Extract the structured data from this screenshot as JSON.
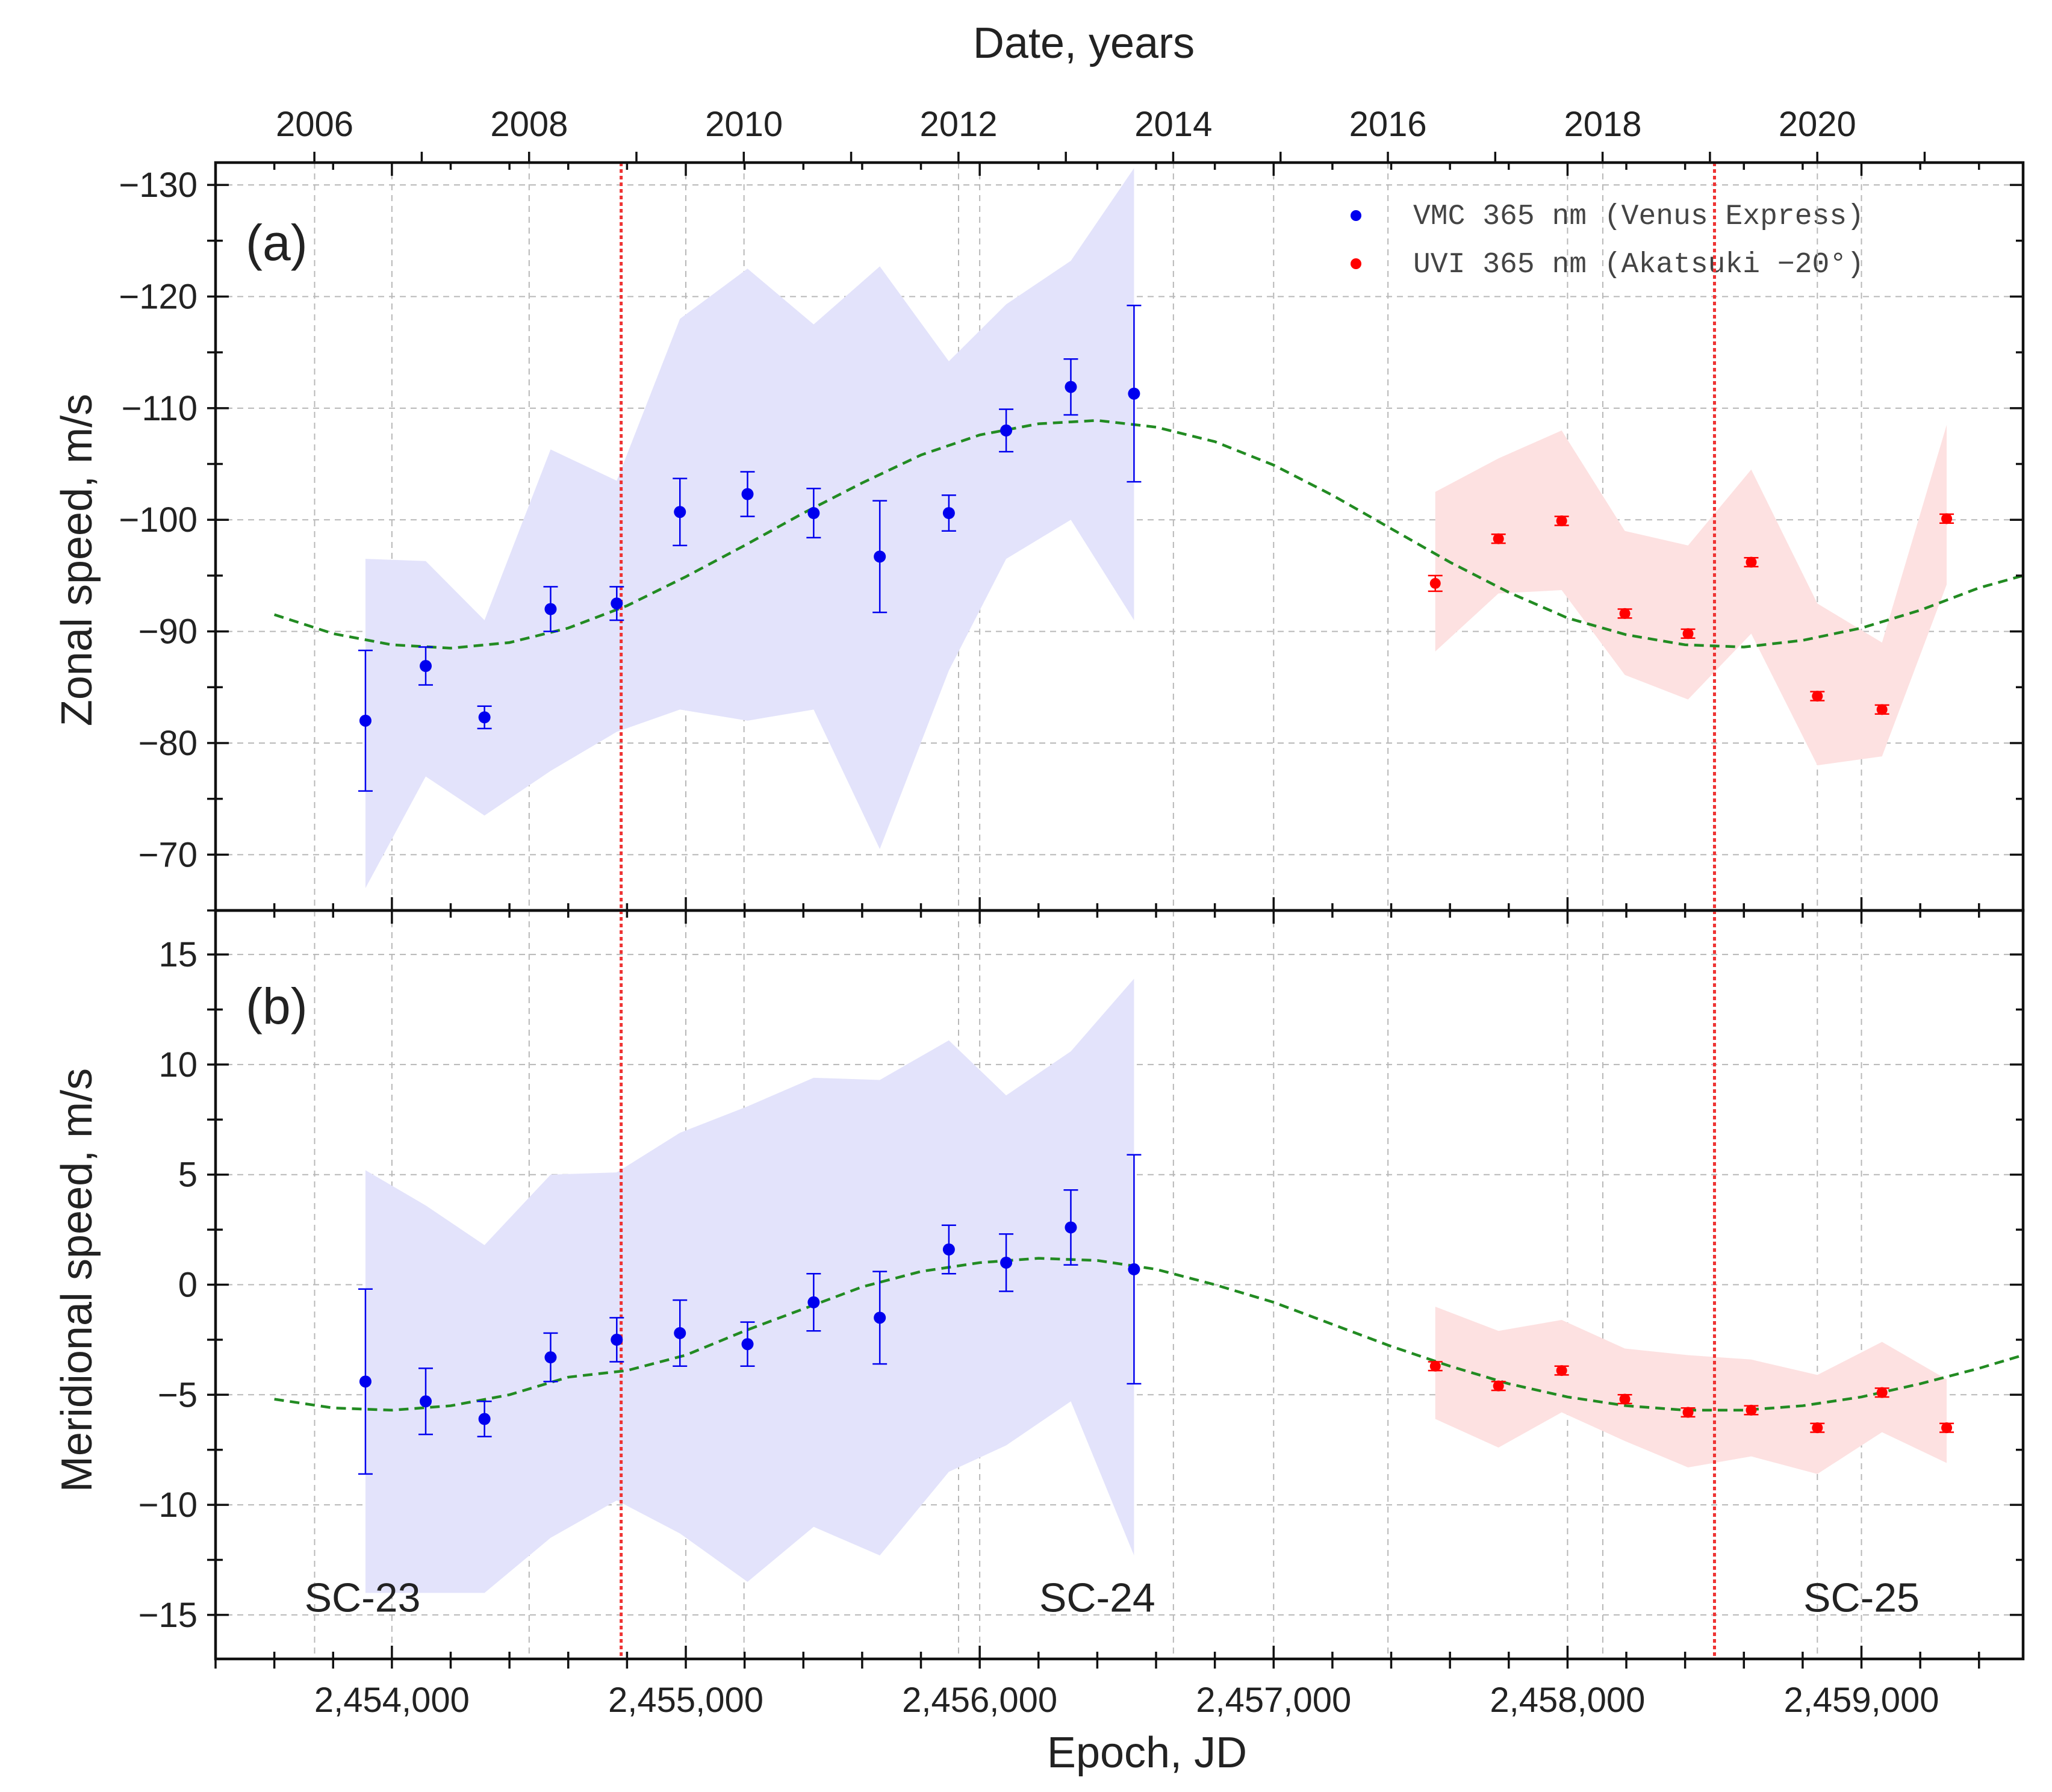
{
  "figure": {
    "top_axis_label": "Date, years",
    "bottom_axis_label": "Epoch, JD",
    "colors": {
      "vmc": "#0000ee",
      "uvi": "#ff0000",
      "vmc_band": "#e3e3fb",
      "uvi_band": "#fde1e1",
      "fit": "#228b22",
      "vline": "#ee3333",
      "grid": "#b8b8b8"
    }
  },
  "chart_data": [
    {
      "panel": "a",
      "type": "scatter",
      "panel_label": "(a)",
      "ylabel": "Zonal speed, m/s",
      "xlabel": "Epoch, JD",
      "top_xlabel": "Date, years",
      "xlim": [
        2453400,
        2459550
      ],
      "ylim": [
        -65,
        -132
      ],
      "yticks": [
        -130,
        -120,
        -110,
        -100,
        -90,
        -80,
        -70
      ],
      "ytick_labels": [
        "−130",
        "−120",
        "−110",
        "−100",
        "−90",
        "−80",
        "−70"
      ],
      "top_xticks_jd": [
        2453737,
        2454467,
        2455198,
        2455928,
        2456659,
        2457389,
        2458120,
        2458850
      ],
      "top_xtick_labels": [
        "2006",
        "2008",
        "2010",
        "2012",
        "2014",
        "2016",
        "2018",
        "2020"
      ],
      "legend": [
        {
          "label": "VMC 365 nm (Venus Express)",
          "color": "#0000ee"
        },
        {
          "label": "UVI 365 nm (Akatsuki −20°)",
          "color": "#ff0000"
        }
      ],
      "vlines": [
        2454780,
        2458500
      ],
      "series": [
        {
          "name": "VMC 365 nm (Venus Express)",
          "color": "#0000ee",
          "x": [
            2453910,
            2454115,
            2454315,
            2454540,
            2454765,
            2454980,
            2455210,
            2455435,
            2455660,
            2455895,
            2456090,
            2456310,
            2456525
          ],
          "y": [
            -82.0,
            -86.9,
            -82.3,
            -92.0,
            -92.5,
            -100.7,
            -102.3,
            -100.6,
            -96.7,
            -100.6,
            -108.0,
            -111.9,
            -111.3
          ],
          "err": [
            6.3,
            1.7,
            1.0,
            2.0,
            1.5,
            3.0,
            2.0,
            2.2,
            5.0,
            1.6,
            1.9,
            2.5,
            7.9
          ],
          "band_x": [
            2453910,
            2454115,
            2454315,
            2454540,
            2454765,
            2454980,
            2455210,
            2455435,
            2455660,
            2455895,
            2456090,
            2456310,
            2456525
          ],
          "band_low": [
            -67,
            -77,
            -73.5,
            -77.5,
            -81,
            -83,
            -82,
            -83,
            -70.5,
            -86.5,
            -96.5,
            -100,
            -91
          ],
          "band_high": [
            -96.5,
            -96.3,
            -91,
            -106.3,
            -103.5,
            -118,
            -122.5,
            -117.5,
            -122.7,
            -114.2,
            -119.3,
            -123.2,
            -131.5
          ]
        },
        {
          "name": "UVI 365 nm (Akatsuki −20°)",
          "color": "#ff0000",
          "x": [
            2457550,
            2457765,
            2457980,
            2458195,
            2458410,
            2458625,
            2458850,
            2459070,
            2459290
          ],
          "y": [
            -94.3,
            -98.3,
            -99.9,
            -91.6,
            -89.8,
            -96.2,
            -84.2,
            -83.0,
            -100.1
          ],
          "err": [
            0.7,
            0.4,
            0.4,
            0.4,
            0.4,
            0.4,
            0.4,
            0.4,
            0.4
          ],
          "band_x": [
            2457550,
            2457765,
            2457980,
            2458195,
            2458410,
            2458625,
            2458850,
            2459070,
            2459290
          ],
          "band_low": [
            -88.2,
            -93.4,
            -93.7,
            -86.1,
            -83.9,
            -89.8,
            -78.0,
            -78.8,
            -94.2
          ],
          "band_high": [
            -102.5,
            -105.5,
            -108.0,
            -99.0,
            -97.7,
            -104.5,
            -92.5,
            -89.0,
            -108.5
          ]
        },
        {
          "name": "Sinusoidal fit",
          "color": "#228b22",
          "style": "dashed",
          "x": [
            2453600,
            2453800,
            2454000,
            2454200,
            2454400,
            2454600,
            2454800,
            2455000,
            2455200,
            2455400,
            2455600,
            2455800,
            2456000,
            2456200,
            2456400,
            2456600,
            2456800,
            2457000,
            2457200,
            2457400,
            2457600,
            2457800,
            2458000,
            2458200,
            2458400,
            2458600,
            2458800,
            2459000,
            2459200,
            2459400,
            2459550
          ],
          "y": [
            -91.5,
            -89.8,
            -88.8,
            -88.5,
            -89.0,
            -90.3,
            -92.3,
            -94.9,
            -97.7,
            -100.6,
            -103.3,
            -105.8,
            -107.6,
            -108.6,
            -108.9,
            -108.3,
            -107.0,
            -104.9,
            -102.2,
            -99.2,
            -96.2,
            -93.5,
            -91.2,
            -89.7,
            -88.8,
            -88.6,
            -89.2,
            -90.3,
            -91.9,
            -93.9,
            -95.0
          ]
        }
      ],
      "annotations": []
    },
    {
      "panel": "b",
      "type": "scatter",
      "panel_label": "(b)",
      "ylabel": "Meridional speed, m/s",
      "xlabel": "Epoch, JD",
      "xlim": [
        2453400,
        2459550
      ],
      "ylim": [
        -17,
        17
      ],
      "yticks": [
        15,
        10,
        5,
        0,
        -5,
        -10,
        -15
      ],
      "ytick_labels": [
        "15",
        "10",
        "5",
        "0",
        "−5",
        "−10",
        "−15"
      ],
      "xticks": [
        2454000,
        2455000,
        2456000,
        2457000,
        2458000,
        2459000
      ],
      "xtick_labels": [
        "2,454,000",
        "2,455,000",
        "2,456,000",
        "2,457,000",
        "2,458,000",
        "2,459,000"
      ],
      "vlines": [
        2454780,
        2458500
      ],
      "series": [
        {
          "name": "VMC 365 nm (Venus Express)",
          "color": "#0000ee",
          "x": [
            2453910,
            2454115,
            2454315,
            2454540,
            2454765,
            2454980,
            2455210,
            2455435,
            2455660,
            2455895,
            2456090,
            2456310,
            2456525
          ],
          "y": [
            -4.4,
            -5.3,
            -6.1,
            -3.3,
            -2.5,
            -2.2,
            -2.7,
            -0.8,
            -1.5,
            1.6,
            1.0,
            2.6,
            0.7
          ],
          "err": [
            4.2,
            1.5,
            0.8,
            1.1,
            1.0,
            1.5,
            1.0,
            1.3,
            2.1,
            1.1,
            1.3,
            1.7,
            5.2
          ],
          "band_x": [
            2453910,
            2454115,
            2454315,
            2454540,
            2454765,
            2454980,
            2455210,
            2455435,
            2455660,
            2455895,
            2456090,
            2456310,
            2456525
          ],
          "band_low": [
            -14,
            -14,
            -14,
            -11.5,
            -9.8,
            -11.3,
            -13.5,
            -11,
            -12.3,
            -8.5,
            -7.3,
            -5.3,
            -12.3
          ],
          "band_high": [
            5.2,
            3.6,
            1.8,
            5,
            5.1,
            6.9,
            8.1,
            9.4,
            9.3,
            11.1,
            8.6,
            10.6,
            13.9
          ]
        },
        {
          "name": "UVI 365 nm (Akatsuki −20°)",
          "color": "#ff0000",
          "x": [
            2457550,
            2457765,
            2457980,
            2458195,
            2458410,
            2458625,
            2458850,
            2459070,
            2459290
          ],
          "y": [
            -3.7,
            -4.6,
            -3.9,
            -5.2,
            -5.8,
            -5.7,
            -6.5,
            -4.9,
            -6.5
          ],
          "err": [
            0.2,
            0.2,
            0.2,
            0.2,
            0.2,
            0.2,
            0.2,
            0.2,
            0.2
          ],
          "band_x": [
            2457550,
            2457765,
            2457980,
            2458195,
            2458410,
            2458625,
            2458850,
            2459070,
            2459290
          ],
          "band_low": [
            -6.1,
            -7.4,
            -5.8,
            -7.1,
            -8.3,
            -7.8,
            -8.6,
            -6.7,
            -8.1
          ],
          "band_high": [
            -1.0,
            -2.1,
            -1.6,
            -2.9,
            -3.2,
            -3.4,
            -4.1,
            -2.6,
            -4.3
          ]
        },
        {
          "name": "Sinusoidal fit",
          "color": "#228b22",
          "style": "dashed",
          "x": [
            2453600,
            2453800,
            2454000,
            2454200,
            2454400,
            2454600,
            2454800,
            2455000,
            2455200,
            2455400,
            2455600,
            2455800,
            2456000,
            2456200,
            2456400,
            2456600,
            2456800,
            2457000,
            2457200,
            2457400,
            2457600,
            2457800,
            2458000,
            2458200,
            2458400,
            2458600,
            2458800,
            2459000,
            2459200,
            2459400,
            2459550
          ],
          "y": [
            -5.2,
            -5.6,
            -5.7,
            -5.5,
            -5.0,
            -4.2,
            -3.9,
            -3.2,
            -2.1,
            -1.1,
            -0.1,
            0.6,
            1.0,
            1.2,
            1.1,
            0.7,
            0.0,
            -0.8,
            -1.8,
            -2.8,
            -3.7,
            -4.5,
            -5.1,
            -5.5,
            -5.7,
            -5.7,
            -5.5,
            -5.1,
            -4.5,
            -3.8,
            -3.2
          ]
        }
      ],
      "annotations": [
        {
          "text": "SC-23",
          "x": 2453900,
          "y": -14.2
        },
        {
          "text": "SC-24",
          "x": 2456400,
          "y": -14.2
        },
        {
          "text": "SC-25",
          "x": 2459000,
          "y": -14.2
        }
      ]
    }
  ]
}
